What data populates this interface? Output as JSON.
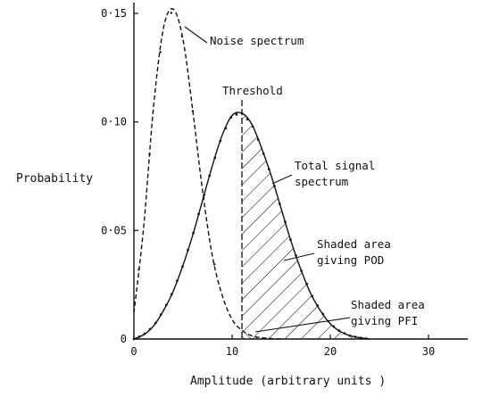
{
  "chart_data": {
    "type": "line",
    "title": "",
    "xlabel": "Amplitude (arbitrary units )",
    "ylabel": "Probability",
    "xlim": [
      0,
      34
    ],
    "ylim": [
      0,
      0.155
    ],
    "x_ticks": [
      {
        "value": 0,
        "label": "0"
      },
      {
        "value": 10,
        "label": "10"
      },
      {
        "value": 20,
        "label": "20"
      },
      {
        "value": 30,
        "label": "30"
      }
    ],
    "y_ticks": [
      {
        "value": 0,
        "label": "0"
      },
      {
        "value": 0.05,
        "label": "0·05"
      },
      {
        "value": 0.1,
        "label": "0·10"
      },
      {
        "value": 0.15,
        "label": "0·15"
      }
    ],
    "grid": false,
    "threshold": {
      "x": 11,
      "label": "Threshold"
    },
    "series": [
      {
        "name": "Noise spectrum",
        "line_style": "dashed",
        "x": [
          0,
          1,
          2,
          3,
          4,
          5,
          6,
          7,
          8,
          9,
          10,
          11,
          12,
          13,
          14,
          15
        ],
        "y": [
          0.012,
          0.052,
          0.107,
          0.143,
          0.152,
          0.138,
          0.105,
          0.068,
          0.038,
          0.02,
          0.009,
          0.004,
          0.0015,
          0.0006,
          0.0002,
          0
        ]
      },
      {
        "name": "Total signal spectrum",
        "line_style": "solid-dotted",
        "x": [
          0,
          1,
          2,
          3,
          4,
          5,
          6,
          7,
          8,
          9,
          10,
          11,
          12,
          13,
          14,
          15,
          16,
          17,
          18,
          19,
          20,
          21,
          22,
          23,
          24
        ],
        "y": [
          0,
          0.002,
          0.006,
          0.013,
          0.022,
          0.034,
          0.048,
          0.064,
          0.08,
          0.094,
          0.103,
          0.104,
          0.099,
          0.088,
          0.075,
          0.06,
          0.045,
          0.032,
          0.021,
          0.013,
          0.007,
          0.0035,
          0.0015,
          0.0006,
          0
        ]
      }
    ],
    "annotations": [
      {
        "label": "Noise spectrum",
        "lines": [
          "Noise spectrum"
        ]
      },
      {
        "label": "Threshold",
        "lines": [
          "Threshold"
        ]
      },
      {
        "label": "Total signal spectrum",
        "lines": [
          "Total signal",
          "spectrum"
        ]
      },
      {
        "label": "Shaded area giving POD",
        "lines": [
          "Shaded area",
          "giving POD"
        ]
      },
      {
        "label": "Shaded area giving PFI",
        "lines": [
          "Shaded area",
          "giving PFI"
        ]
      }
    ]
  }
}
